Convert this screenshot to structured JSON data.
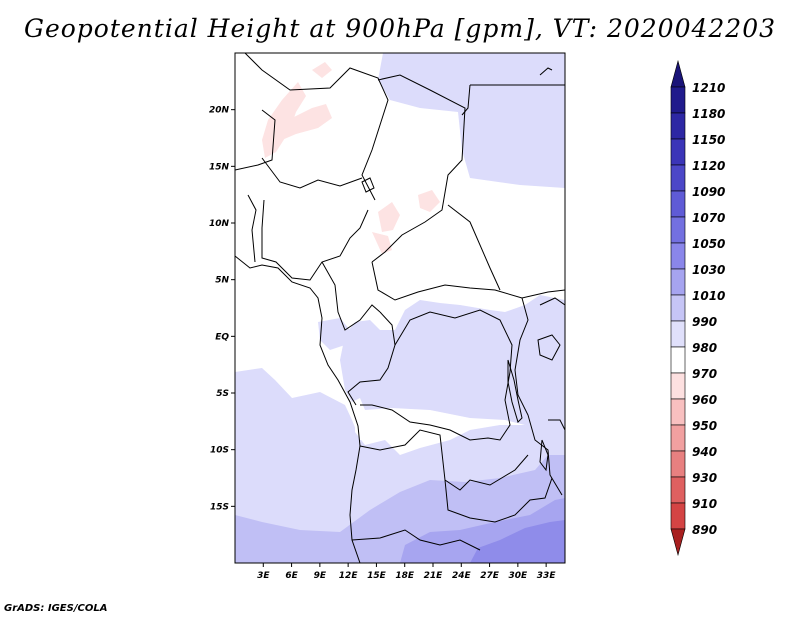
{
  "title": "Geopotential Height at 900hPa [gpm], VT: 2020042203",
  "credit": "GrADS: IGES/COLA",
  "map": {
    "lon_range": [
      0,
      35
    ],
    "lat_range": [
      -20,
      25
    ],
    "lat_ticks": [
      {
        "value": 20,
        "label": "20N"
      },
      {
        "value": 15,
        "label": "15N"
      },
      {
        "value": 10,
        "label": "10N"
      },
      {
        "value": 5,
        "label": "5N"
      },
      {
        "value": 0,
        "label": "EQ"
      },
      {
        "value": -5,
        "label": "5S"
      },
      {
        "value": -10,
        "label": "10S"
      },
      {
        "value": -15,
        "label": "15S"
      }
    ],
    "lon_ticks": [
      {
        "value": 3,
        "label": "3E"
      },
      {
        "value": 6,
        "label": "6E"
      },
      {
        "value": 9,
        "label": "9E"
      },
      {
        "value": 12,
        "label": "12E"
      },
      {
        "value": 15,
        "label": "15E"
      },
      {
        "value": 18,
        "label": "18E"
      },
      {
        "value": 21,
        "label": "21E"
      },
      {
        "value": 24,
        "label": "24E"
      },
      {
        "value": 27,
        "label": "27E"
      },
      {
        "value": 30,
        "label": "30E"
      },
      {
        "value": 33,
        "label": "33E"
      }
    ]
  },
  "colorbar": {
    "levels": [
      {
        "label": "1210",
        "color": "#201b8c"
      },
      {
        "label": "1180",
        "color": "#2d27a4"
      },
      {
        "label": "1150",
        "color": "#3b35b8"
      },
      {
        "label": "1120",
        "color": "#4c47c8"
      },
      {
        "label": "1090",
        "color": "#5f5bd6"
      },
      {
        "label": "1070",
        "color": "#7370e0"
      },
      {
        "label": "1050",
        "color": "#8a86ea"
      },
      {
        "label": "1030",
        "color": "#a6a4f0"
      },
      {
        "label": "1010",
        "color": "#c6c5f6"
      },
      {
        "label": "990",
        "color": "#e0e0fb"
      },
      {
        "label": "980",
        "color": "#ffffff"
      },
      {
        "label": "970",
        "color": "#fde0e0"
      },
      {
        "label": "960",
        "color": "#f8c0c0"
      },
      {
        "label": "950",
        "color": "#f1a0a0"
      },
      {
        "label": "940",
        "color": "#e88080"
      },
      {
        "label": "930",
        "color": "#df6060"
      },
      {
        "label": "910",
        "color": "#d44444"
      },
      {
        "label": "890",
        "color": "#c02c2c"
      }
    ],
    "under_color": "#a82020",
    "over_color": "#1a1478"
  }
}
